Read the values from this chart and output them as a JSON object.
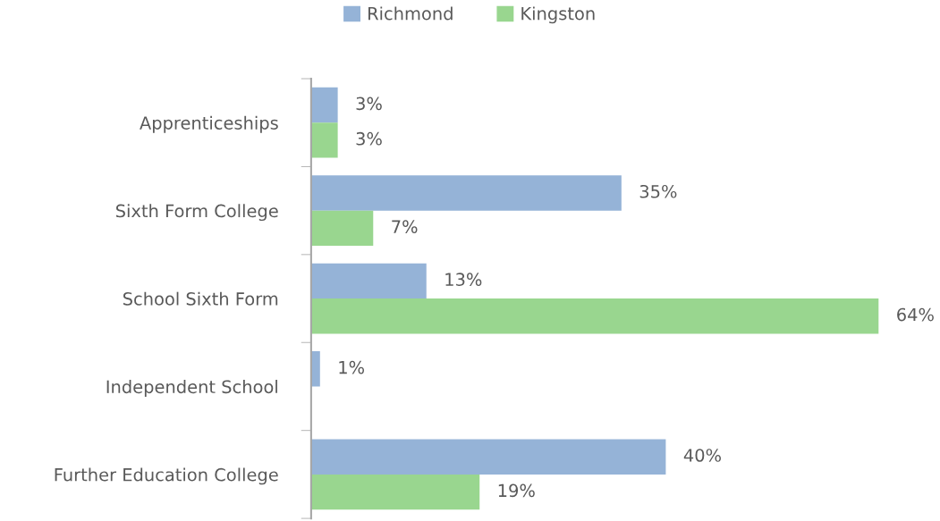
{
  "chart_data": {
    "type": "bar",
    "orientation": "horizontal",
    "legend": "top",
    "categories": [
      "Apprenticeships",
      "Sixth Form College",
      "School Sixth Form",
      "Independent School",
      "Further Education College"
    ],
    "series": [
      {
        "name": "Richmond",
        "color": "#95b3d7",
        "values": [
          3,
          35,
          13,
          1,
          40
        ],
        "value_labels": [
          "3%",
          "35%",
          "13%",
          "1%",
          "40%"
        ]
      },
      {
        "name": "Kingston",
        "color": "#99d68f",
        "values": [
          3,
          7,
          64,
          null,
          19
        ],
        "value_labels": [
          "3%",
          "7%",
          "64%",
          null,
          "19%"
        ]
      }
    ]
  }
}
